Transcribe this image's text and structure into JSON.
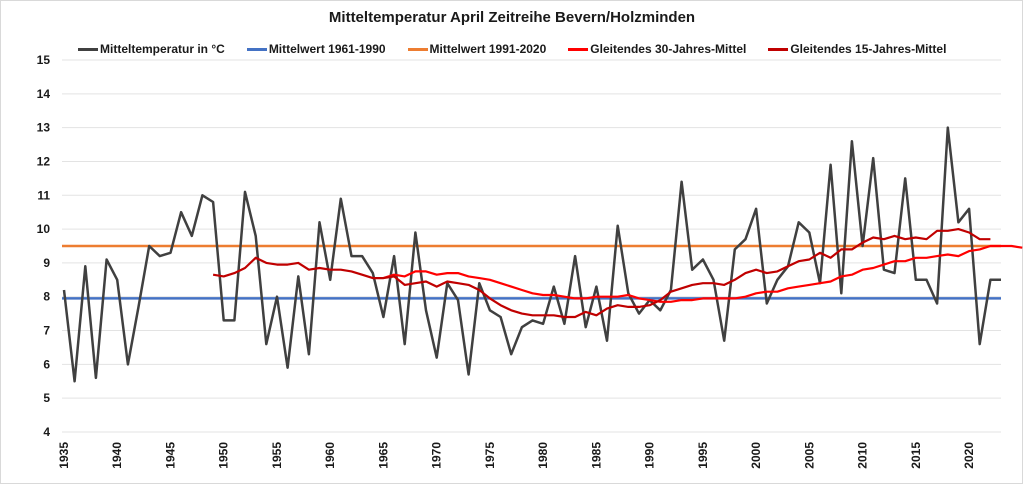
{
  "chart_data": {
    "type": "line",
    "title": "Mitteltemperatur April Zeitreihe Bevern/Holzminden",
    "xlabel": "",
    "ylabel": "",
    "ylim": [
      4,
      15
    ],
    "xlim": [
      1935,
      2023
    ],
    "yticks": [
      "4",
      "5",
      "6",
      "7",
      "8",
      "9",
      "10",
      "11",
      "12",
      "13",
      "14",
      "15"
    ],
    "xticks": [
      "1935",
      "1940",
      "1945",
      "1950",
      "1955",
      "1960",
      "1965",
      "1970",
      "1975",
      "1980",
      "1985",
      "1990",
      "1995",
      "2000",
      "2005",
      "2010",
      "2015",
      "2020"
    ],
    "grid": true,
    "legend_position": "top",
    "legend": [
      {
        "label": "Mitteltemperatur in °C",
        "color": "#404040"
      },
      {
        "label": "Mittelwert 1961-1990",
        "color": "#4472c4"
      },
      {
        "label": "Mittelwert 1991-2020",
        "color": "#ed7d31"
      },
      {
        "label": "Gleitendes 30-Jahres-Mittel",
        "color": "#ff0000"
      },
      {
        "label": "Gleitendes 15-Jahres-Mittel",
        "color": "#c00000"
      }
    ],
    "series": [
      {
        "name": "Mitteltemperatur in °C",
        "color": "#404040",
        "start_year": 1935,
        "values": [
          8.2,
          5.5,
          8.9,
          5.6,
          9.1,
          8.5,
          6.0,
          7.7,
          9.5,
          9.2,
          9.3,
          10.5,
          9.8,
          11.0,
          10.8,
          7.3,
          7.3,
          11.1,
          9.8,
          6.6,
          8.0,
          5.9,
          8.6,
          6.3,
          10.2,
          8.5,
          10.9,
          9.2,
          9.2,
          8.7,
          7.4,
          9.2,
          6.6,
          9.9,
          7.6,
          6.2,
          8.4,
          7.9,
          5.7,
          8.4,
          7.6,
          7.4,
          6.3,
          7.1,
          7.3,
          7.2,
          8.3,
          7.2,
          9.2,
          7.1,
          8.3,
          6.7,
          10.1,
          8.1,
          7.5,
          7.9,
          7.6,
          8.2,
          11.4,
          8.8,
          9.1,
          8.5,
          6.7,
          9.4,
          9.7,
          10.6,
          7.8,
          8.5,
          8.9,
          10.2,
          9.9,
          8.4,
          11.9,
          8.1,
          12.6,
          9.5,
          12.1,
          8.8,
          8.7,
          11.5,
          8.5,
          8.5,
          7.8,
          13.0,
          10.2,
          10.6,
          6.6,
          8.5,
          8.5
        ]
      },
      {
        "name": "Mittelwert 1961-1990",
        "color": "#4472c4",
        "constant": 7.95
      },
      {
        "name": "Mittelwert 1991-2020",
        "color": "#ed7d31",
        "constant": 9.5
      },
      {
        "name": "Gleitendes 30-Jahres-Mittel",
        "color": "#ff0000",
        "start_year": 1965,
        "values": [
          8.55,
          8.65,
          8.6,
          8.75,
          8.75,
          8.65,
          8.7,
          8.7,
          8.6,
          8.55,
          8.5,
          8.4,
          8.3,
          8.2,
          8.1,
          8.05,
          8.05,
          8.0,
          7.95,
          7.95,
          8.0,
          8.0,
          8.0,
          8.05,
          7.95,
          7.9,
          7.85,
          7.85,
          7.9,
          7.9,
          7.95,
          7.95,
          7.95,
          7.95,
          8.0,
          8.1,
          8.15,
          8.15,
          8.25,
          8.3,
          8.35,
          8.4,
          8.45,
          8.6,
          8.65,
          8.8,
          8.85,
          8.95,
          9.05,
          9.05,
          9.15,
          9.15,
          9.2,
          9.25,
          9.2,
          9.35,
          9.4,
          9.5,
          9.5,
          9.5,
          9.45
        ]
      },
      {
        "name": "Gleitendes 15-Jahres-Mittel",
        "color": "#c00000",
        "start_year": 1949,
        "values": [
          8.65,
          8.6,
          8.7,
          8.85,
          9.15,
          9.0,
          8.95,
          8.95,
          9.0,
          8.8,
          8.85,
          8.8,
          8.8,
          8.75,
          8.65,
          8.55,
          8.55,
          8.6,
          8.35,
          8.4,
          8.45,
          8.3,
          8.45,
          8.4,
          8.35,
          8.2,
          7.95,
          7.75,
          7.6,
          7.5,
          7.45,
          7.45,
          7.45,
          7.4,
          7.4,
          7.55,
          7.45,
          7.65,
          7.75,
          7.7,
          7.7,
          7.75,
          7.9,
          8.15,
          8.25,
          8.35,
          8.4,
          8.4,
          8.35,
          8.5,
          8.7,
          8.8,
          8.7,
          8.75,
          8.9,
          9.05,
          9.1,
          9.3,
          9.15,
          9.4,
          9.4,
          9.6,
          9.75,
          9.7,
          9.8,
          9.7,
          9.75,
          9.7,
          9.95,
          9.95,
          10.0,
          9.9,
          9.7,
          9.7
        ]
      }
    ]
  }
}
